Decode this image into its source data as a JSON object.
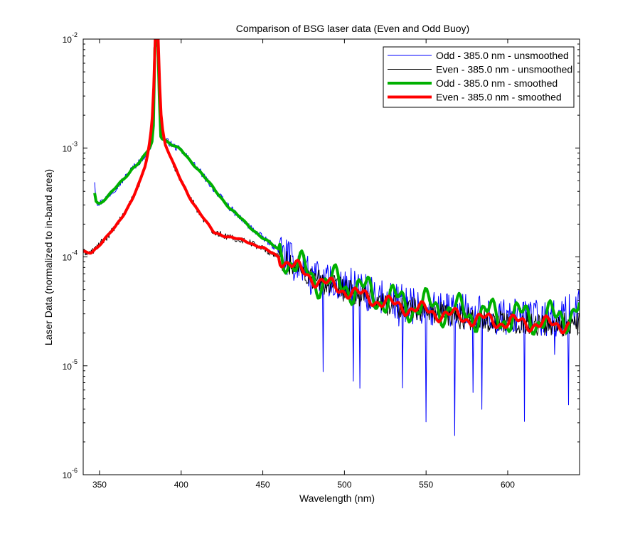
{
  "chart_data": {
    "type": "line",
    "title": "Comparison of BSG laser data (Even and Odd Buoy)",
    "xlabel": "Wavelength (nm)",
    "ylabel": "Laser Data (normalized to in-band area)",
    "xlim": [
      340,
      644
    ],
    "ylim": [
      1e-06,
      0.01
    ],
    "yscale": "log",
    "x_ticks": [
      350,
      400,
      450,
      500,
      550,
      600
    ],
    "y_ticks": [
      {
        "base": "10",
        "exp": "-6",
        "value": 1e-06
      },
      {
        "base": "10",
        "exp": "-5",
        "value": 1e-05
      },
      {
        "base": "10",
        "exp": "-4",
        "value": 0.0001
      },
      {
        "base": "10",
        "exp": "-3",
        "value": 0.001
      },
      {
        "base": "10",
        "exp": "-2",
        "value": 0.01
      }
    ],
    "legend_position": "top-right",
    "series": [
      {
        "name": "Odd - 385.0 nm - unsmoothed",
        "color": "#0000ff",
        "width": 1,
        "style": "noisy",
        "x": [
          347,
          348,
          350,
          355,
          360,
          365,
          370,
          375,
          378,
          380,
          382,
          383,
          384,
          385,
          386,
          387,
          388,
          390,
          395,
          400,
          410,
          420,
          430,
          440,
          450,
          460,
          470,
          480,
          490,
          500,
          510,
          520,
          530,
          540,
          550,
          560,
          570,
          580,
          590,
          600,
          610,
          620,
          630,
          640,
          644
        ],
        "y": [
          0.0005,
          0.00032,
          0.00031,
          0.00036,
          0.00043,
          0.00052,
          0.00065,
          0.00076,
          0.00086,
          0.00095,
          0.0011,
          0.0016,
          0.01,
          0.01,
          0.01,
          0.0013,
          0.00125,
          0.0012,
          0.00105,
          0.00095,
          0.00065,
          0.00042,
          0.00028,
          0.0002,
          0.00015,
          0.000115,
          8.5e-05,
          6.5e-05,
          5.8e-05,
          5.6e-05,
          5e-05,
          4.3e-05,
          4e-05,
          3.6e-05,
          3.5e-05,
          3.4e-05,
          3.1e-05,
          3e-05,
          2.9e-05,
          2.8e-05,
          2.8e-05,
          2.7e-05,
          2.7e-05,
          3.2e-05,
          3.4e-05
        ]
      },
      {
        "name": "Even - 385.0 nm - unsmoothed",
        "color": "#000000",
        "width": 1,
        "style": "noisy",
        "x": [
          340,
          345,
          350,
          355,
          360,
          365,
          370,
          375,
          378,
          380,
          382,
          383,
          384,
          385,
          386,
          387,
          388,
          390,
          395,
          400,
          405,
          410,
          415,
          420,
          430,
          440,
          450,
          460,
          470,
          480,
          490,
          500,
          510,
          520,
          530,
          540,
          550,
          560,
          570,
          580,
          590,
          600,
          610,
          620,
          630,
          640,
          644
        ],
        "y": [
          0.00011,
          0.00011,
          0.00013,
          0.000155,
          0.00019,
          0.00025,
          0.00034,
          0.0005,
          0.00068,
          0.00095,
          0.0016,
          0.0028,
          0.01,
          0.01,
          0.01,
          0.003,
          0.0017,
          0.0011,
          0.00072,
          0.0005,
          0.00036,
          0.00027,
          0.00021,
          0.00017,
          0.00015,
          0.00014,
          0.00012,
          0.0001,
          8e-05,
          6.5e-05,
          5.5e-05,
          5e-05,
          4.4e-05,
          4e-05,
          3.6e-05,
          3.4e-05,
          3.2e-05,
          3e-05,
          2.8e-05,
          2.7e-05,
          2.6e-05,
          2.5e-05,
          2.5e-05,
          2.4e-05,
          2.4e-05,
          2.4e-05,
          2.4e-05
        ]
      },
      {
        "name": "Odd - 385.0 nm - smoothed",
        "color": "#00b000",
        "width": 4,
        "style": "smooth",
        "x": [
          347,
          348,
          350,
          355,
          360,
          365,
          370,
          375,
          378,
          380,
          382,
          383,
          384,
          385,
          386,
          387,
          388,
          390,
          395,
          400,
          410,
          420,
          430,
          440,
          450,
          460,
          470,
          480,
          490,
          500,
          510,
          520,
          530,
          540,
          550,
          560,
          570,
          580,
          590,
          600,
          610,
          620,
          630,
          640,
          644
        ],
        "y": [
          0.00039,
          0.00032,
          0.00031,
          0.00036,
          0.00043,
          0.00052,
          0.00065,
          0.00076,
          0.00086,
          0.00095,
          0.0011,
          0.0016,
          0.01,
          0.01,
          0.01,
          0.0013,
          0.00125,
          0.0012,
          0.00105,
          0.00095,
          0.00065,
          0.00042,
          0.00028,
          0.0002,
          0.00015,
          0.000115,
          8.5e-05,
          6.5e-05,
          5.8e-05,
          5.6e-05,
          5e-05,
          4.3e-05,
          4e-05,
          3.6e-05,
          3.5e-05,
          3.4e-05,
          3.1e-05,
          3e-05,
          2.9e-05,
          2.8e-05,
          2.8e-05,
          2.7e-05,
          2.7e-05,
          3.2e-05,
          3.4e-05
        ]
      },
      {
        "name": "Even - 385.0 nm - smoothed",
        "color": "#ff0000",
        "width": 4,
        "style": "smooth",
        "x": [
          340,
          345,
          350,
          355,
          360,
          365,
          370,
          375,
          378,
          380,
          382,
          383,
          384,
          385,
          386,
          387,
          388,
          390,
          395,
          400,
          405,
          410,
          415,
          420,
          430,
          440,
          450,
          460,
          470,
          480,
          490,
          500,
          510,
          520,
          530,
          540,
          550,
          560,
          570,
          580,
          590,
          600,
          610,
          620,
          630,
          638
        ],
        "y": [
          0.00011,
          0.00011,
          0.00013,
          0.000155,
          0.00019,
          0.00025,
          0.00034,
          0.0005,
          0.00068,
          0.00095,
          0.0016,
          0.0028,
          0.01,
          0.01,
          0.01,
          0.003,
          0.0017,
          0.0011,
          0.00072,
          0.0005,
          0.00036,
          0.00027,
          0.00021,
          0.00017,
          0.00015,
          0.00014,
          0.00012,
          0.0001,
          8e-05,
          6.5e-05,
          5.5e-05,
          5e-05,
          4.4e-05,
          4e-05,
          3.6e-05,
          3.4e-05,
          3.2e-05,
          3e-05,
          2.8e-05,
          2.7e-05,
          2.6e-05,
          2.5e-05,
          2.5e-05,
          2.4e-05,
          2.4e-05,
          2.4e-05
        ]
      }
    ]
  }
}
